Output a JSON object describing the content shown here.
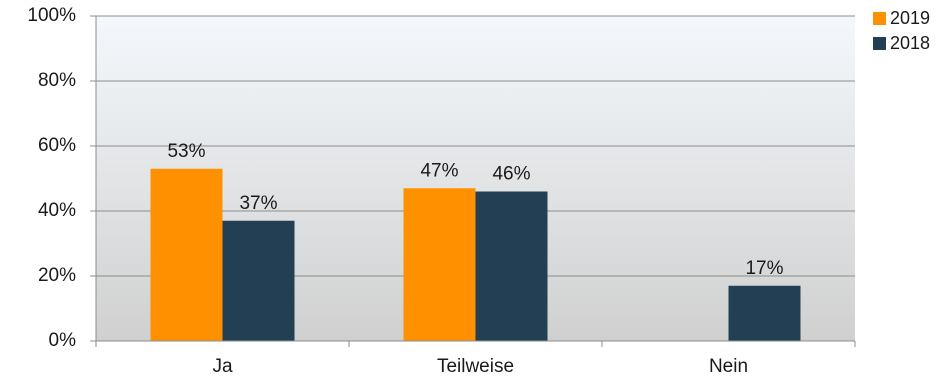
{
  "chart_data": {
    "type": "bar",
    "categories": [
      "Ja",
      "Teilweise",
      "Nein"
    ],
    "series": [
      {
        "name": "2019",
        "values": [
          53,
          47,
          null
        ],
        "labels": [
          "53%",
          "47%",
          ""
        ],
        "color": "#ff9100"
      },
      {
        "name": "2018",
        "values": [
          37,
          46,
          17
        ],
        "labels": [
          "37%",
          "46%",
          "17%"
        ],
        "color": "#223f53"
      }
    ],
    "yticks": [
      "0%",
      "20%",
      "40%",
      "60%",
      "80%",
      "100%"
    ],
    "ylim": [
      0,
      100
    ],
    "grid": true,
    "legend": "top-right",
    "title": "",
    "xlabel": "",
    "ylabel": ""
  }
}
